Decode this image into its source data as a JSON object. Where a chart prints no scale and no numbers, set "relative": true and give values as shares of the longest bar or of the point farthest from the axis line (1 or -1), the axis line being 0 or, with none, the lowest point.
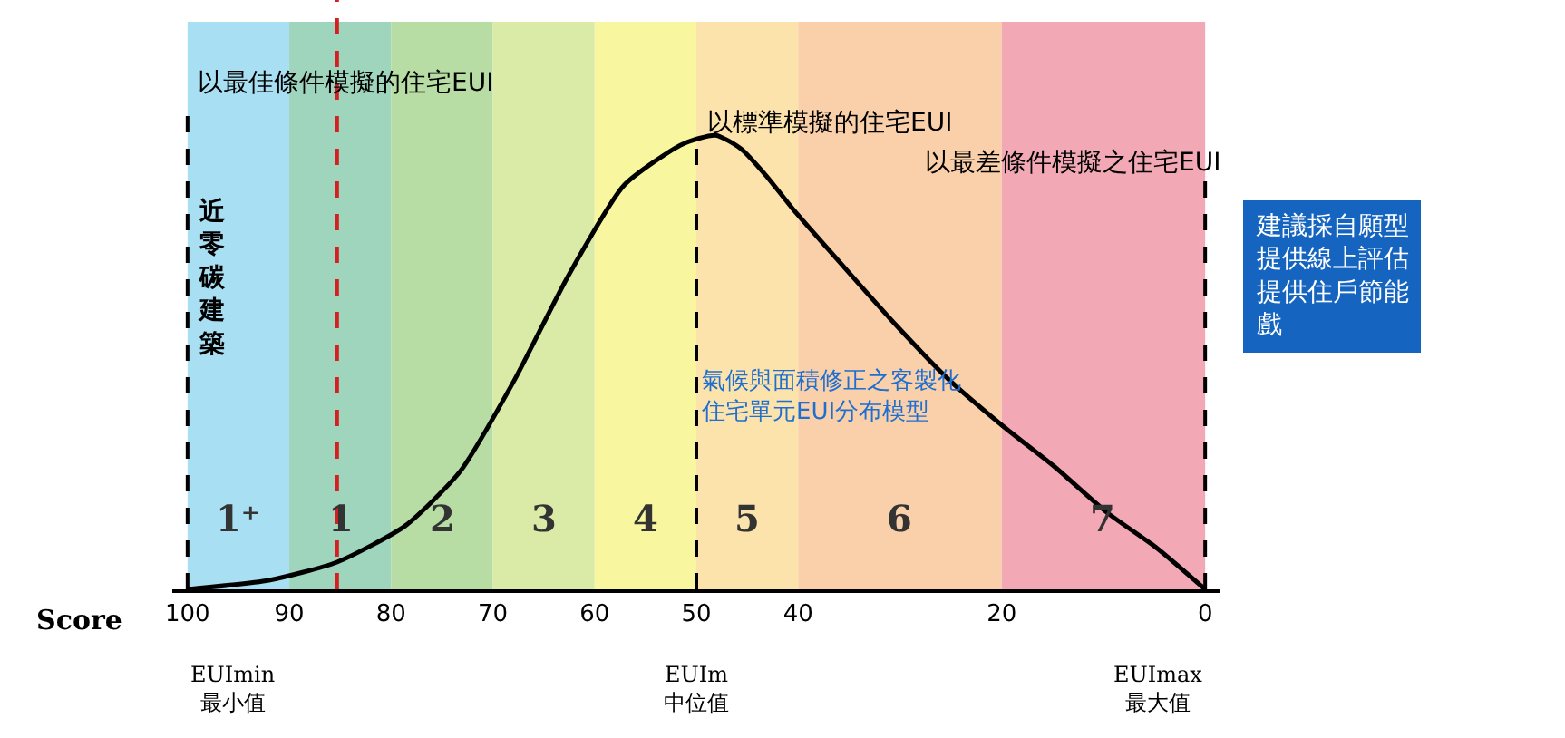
{
  "chart_data": {
    "type": "line",
    "relative": true,
    "xlabel": "Score",
    "x": [
      100,
      92,
      85.3,
      78.6,
      73.2,
      67.9,
      62.6,
      57.1,
      51.4,
      48.1,
      45.6,
      43.1,
      40.6,
      35.5,
      30.3,
      25.1,
      19.9,
      14.8,
      9.7,
      4.7,
      0
    ],
    "series": [
      {
        "color": "#000000",
        "values": [
          0,
          0.02,
          0.06,
          0.14,
          0.26,
          0.46,
          0.69,
          0.89,
          0.98,
          1,
          0.97,
          0.91,
          0.84,
          0.71,
          0.58,
          0.46,
          0.36,
          0.27,
          0.17,
          0.09,
          0
        ]
      }
    ],
    "xlim": [
      101.5,
      -1.5
    ],
    "xticks": [
      100,
      90,
      80,
      70,
      60,
      50,
      40,
      20,
      0
    ],
    "bands": [
      {
        "axis": "x",
        "from": 100,
        "to": 90,
        "label": "1⁺",
        "color": "#a8dff2"
      },
      {
        "axis": "x",
        "from": 90,
        "to": 80,
        "label": "1",
        "color": "#9fd5bd"
      },
      {
        "axis": "x",
        "from": 80,
        "to": 70,
        "label": "2",
        "color": "#b7dda4"
      },
      {
        "axis": "x",
        "from": 70,
        "to": 60,
        "label": "3",
        "color": "#d9eba6"
      },
      {
        "axis": "x",
        "from": 60,
        "to": 50,
        "label": "4",
        "color": "#f8f69e"
      },
      {
        "axis": "x",
        "from": 50,
        "to": 40,
        "label": "5",
        "color": "#fbe3ab"
      },
      {
        "axis": "x",
        "from": 40,
        "to": 20,
        "label": "6",
        "color": "#f9d0aa"
      },
      {
        "axis": "x",
        "from": 20,
        "to": 0,
        "label": "7",
        "color": "#f2a9b5"
      }
    ],
    "ref_lines": [
      {
        "axis": "x",
        "value": 85.3,
        "color": "#d42020",
        "line_style": "dashed"
      },
      {
        "axis": "x",
        "value": 100,
        "label": "以最佳條件模擬的住宅EUI",
        "color": "#000000",
        "line_style": "dashed"
      },
      {
        "axis": "x",
        "value": 50,
        "label": "以標準模擬的住宅EUI",
        "color": "#000000",
        "line_style": "dashed"
      },
      {
        "axis": "x",
        "value": 0,
        "label": "以最差條件模擬之住宅EUI",
        "color": "#000000",
        "line_style": "dashed"
      }
    ],
    "annotations": [
      "近零碳建築",
      "氣候與面積修正之客製化住宅單元EUI分布模型",
      "建議採自願型提供線上評估提供住戶節能戲",
      "EUImin\n最小值",
      "EUIm\n中位值",
      "EUImax\n最大值"
    ],
    "grid": false,
    "marker": "none",
    "line_style": "solid"
  }
}
